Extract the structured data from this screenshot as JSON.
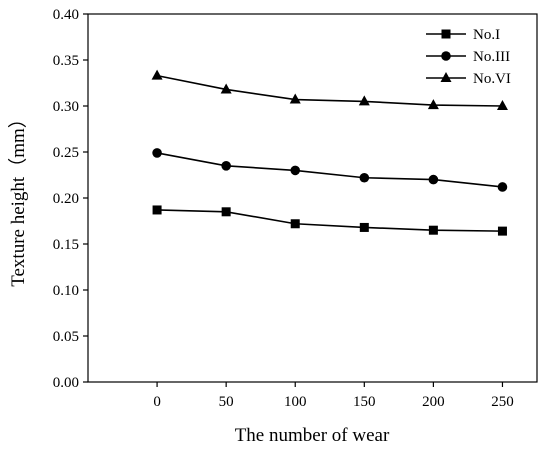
{
  "chart_data": {
    "type": "line",
    "title": "",
    "xlabel": "The number of wear",
    "ylabel": "Texture height（mm）",
    "x": [
      0,
      50,
      100,
      150,
      200,
      250
    ],
    "x_tick_labels": [
      "0",
      "50",
      "100",
      "150",
      "200",
      "250"
    ],
    "y_tick_labels": [
      "0.00",
      "0.05",
      "0.10",
      "0.15",
      "0.20",
      "0.25",
      "0.30",
      "0.35",
      "0.40"
    ],
    "xlim": [
      -50,
      275
    ],
    "ylim": [
      0.0,
      0.4
    ],
    "grid": false,
    "legend_position": "top-right",
    "series": [
      {
        "name": "No.I",
        "marker": "square",
        "values": [
          0.187,
          0.185,
          0.172,
          0.168,
          0.165,
          0.164
        ]
      },
      {
        "name": "No.III",
        "marker": "circle",
        "values": [
          0.249,
          0.235,
          0.23,
          0.222,
          0.22,
          0.212
        ]
      },
      {
        "name": "No.VI",
        "marker": "triangle",
        "values": [
          0.333,
          0.318,
          0.307,
          0.305,
          0.301,
          0.3
        ]
      }
    ],
    "colors": {
      "line": "#000000",
      "marker": "#000000"
    }
  }
}
